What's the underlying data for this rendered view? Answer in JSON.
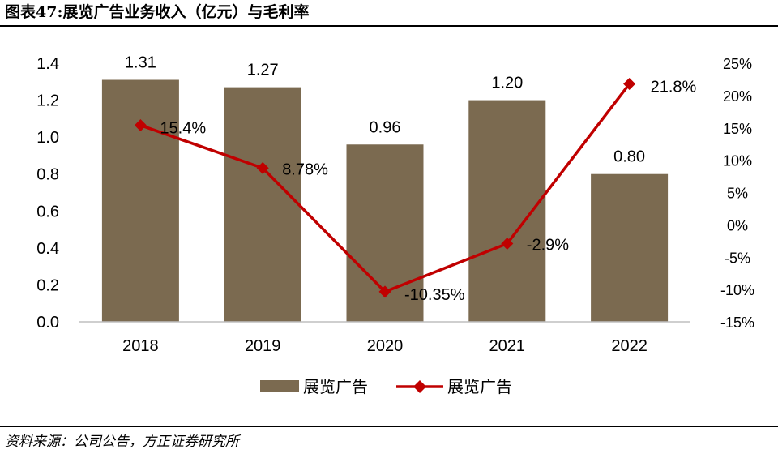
{
  "header": {
    "title": "图表47:展览广告业务收入（亿元）与毛利率"
  },
  "footer": {
    "source": "资料来源：公司公告，方正证券研究所"
  },
  "chart_data": {
    "type": "bar+line",
    "categories": [
      "2018",
      "2019",
      "2020",
      "2021",
      "2022"
    ],
    "series": [
      {
        "name": "展览广告",
        "type": "bar",
        "axis": "left",
        "values": [
          1.31,
          1.27,
          0.96,
          1.2,
          0.8
        ],
        "labels": [
          "1.31",
          "1.27",
          "0.96",
          "1.20",
          "0.80"
        ],
        "color": "#7b6a50"
      },
      {
        "name": "展览广告",
        "type": "line",
        "axis": "right",
        "values": [
          15.4,
          8.78,
          -10.35,
          -2.9,
          21.8
        ],
        "labels": [
          "15.4%",
          "8.78%",
          "-10.35%",
          "-2.9%",
          "21.8%"
        ],
        "color": "#c00000"
      }
    ],
    "left_axis": {
      "min": 0,
      "max": 1.4,
      "ticks": [
        "0.0",
        "0.2",
        "0.4",
        "0.6",
        "0.8",
        "1.0",
        "1.2",
        "1.4"
      ]
    },
    "right_axis": {
      "min": -15,
      "max": 25,
      "ticks": [
        "-15%",
        "-10%",
        "-5%",
        "0%",
        "5%",
        "10%",
        "15%",
        "20%",
        "25%"
      ]
    },
    "grid": false,
    "legend_position": "bottom"
  }
}
